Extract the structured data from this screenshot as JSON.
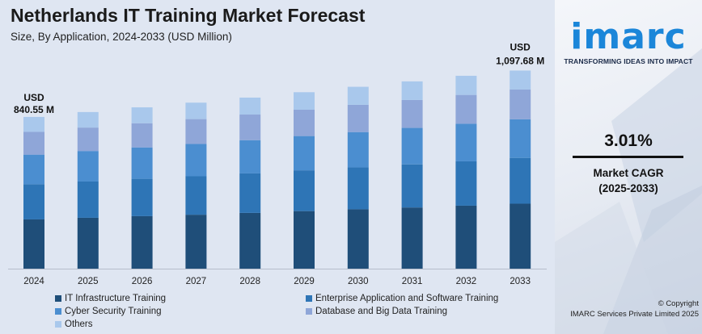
{
  "title": "Netherlands IT Training Market Forecast",
  "subtitle": "Size, By Application, 2024-2033 (USD Million)",
  "annotations": {
    "first_currency": "USD",
    "first_value": "840.55 M",
    "last_currency": "USD",
    "last_value": "1,097.68 M"
  },
  "brand": {
    "logo": "imarc",
    "tagline": "TRANSFORMING IDEAS INTO IMPACT"
  },
  "cagr": {
    "value": "3.01%",
    "label_line1": "Market CAGR",
    "label_line2": "(2025-2033)"
  },
  "copyright": {
    "line1": "© Copyright",
    "line2": "IMARC Services Private Limited 2025"
  },
  "chart_data": {
    "type": "bar",
    "stacked": true,
    "categories": [
      "2024",
      "2025",
      "2026",
      "2027",
      "2028",
      "2029",
      "2030",
      "2031",
      "2032",
      "2033"
    ],
    "totals": [
      840.55,
      null,
      null,
      null,
      null,
      null,
      null,
      null,
      null,
      1097.68
    ],
    "series": [
      {
        "name": "IT Infrastructure Training",
        "color": "#1f4e79",
        "values": [
          273,
          282,
          291,
          299,
          309,
          319,
          329,
          339,
          349,
          360
        ]
      },
      {
        "name": "Enterprise Application and Software Training",
        "color": "#2e75b6",
        "values": [
          195,
          201,
          207,
          213,
          219,
          226,
          232,
          239,
          246,
          254
        ]
      },
      {
        "name": "Cyber Security Training",
        "color": "#4b8ed0",
        "values": [
          164,
          169,
          174,
          179,
          184,
          190,
          196,
          202,
          208,
          214
        ]
      },
      {
        "name": "Database and Big Data Training",
        "color": "#8fa6d8",
        "values": [
          126,
          130,
          134,
          138,
          142,
          146,
          151,
          155,
          160,
          165
        ]
      },
      {
        "name": "Others",
        "color": "#a9c8ec",
        "values": [
          83,
          86,
          88,
          91,
          94,
          97,
          100,
          103,
          106,
          105
        ]
      }
    ],
    "xlabel": "",
    "ylabel": "",
    "ylim": [
      0,
      1100
    ],
    "grid": false,
    "legend": "bottom"
  }
}
